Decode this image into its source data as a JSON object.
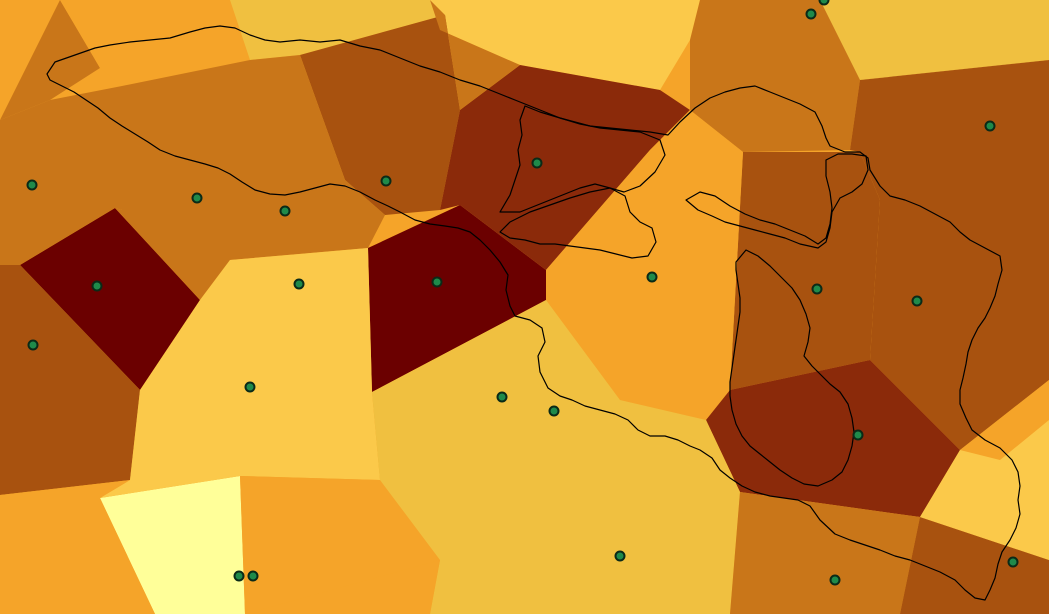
{
  "map": {
    "type": "voronoi-thiessen-polygons",
    "background_color": "#f5a429",
    "legend": null,
    "station_style": {
      "fill": "#1f8a4a",
      "stroke": "#0b2a17"
    },
    "boundary_style": {
      "stroke": "#000000"
    },
    "regions": [
      {
        "id": "r01",
        "fill": "#c97619"
      },
      {
        "id": "r02",
        "fill": "#f5a429"
      },
      {
        "id": "r03",
        "fill": "#f0c040"
      },
      {
        "id": "r04",
        "fill": "#fbc94a"
      },
      {
        "id": "r05",
        "fill": "#a8520f"
      },
      {
        "id": "r06",
        "fill": "#8b2a0a"
      },
      {
        "id": "r07",
        "fill": "#6b0000"
      },
      {
        "id": "r08",
        "fill": "#6b0000"
      },
      {
        "id": "r09",
        "fill": "#ffff99"
      },
      {
        "id": "r10",
        "fill": "#c97619"
      },
      {
        "id": "r11",
        "fill": "#a8520f"
      },
      {
        "id": "r12",
        "fill": "#c97619"
      },
      {
        "id": "r13",
        "fill": "#8b2a0a"
      },
      {
        "id": "r14",
        "fill": "#fbc94a"
      },
      {
        "id": "r15",
        "fill": "#f5a429"
      },
      {
        "id": "r16",
        "fill": "#a8520f"
      },
      {
        "id": "r17",
        "fill": "#c97619"
      },
      {
        "id": "r18",
        "fill": "#f5a429"
      },
      {
        "id": "r19",
        "fill": "#f5a429"
      },
      {
        "id": "r20",
        "fill": "#a8520f"
      },
      {
        "id": "r21",
        "fill": "#8b2a0a"
      },
      {
        "id": "r22",
        "fill": "#f0c040"
      },
      {
        "id": "r23",
        "fill": "#c97619"
      },
      {
        "id": "r24",
        "fill": "#a8520f"
      },
      {
        "id": "r25",
        "fill": "#f5a429"
      },
      {
        "id": "r26",
        "fill": "#fbc94a"
      },
      {
        "id": "r27",
        "fill": "#f0c040"
      },
      {
        "id": "r28",
        "fill": "#c97619"
      },
      {
        "id": "r29",
        "fill": "#f5a429"
      },
      {
        "id": "r30",
        "fill": "#f5a429"
      }
    ],
    "station_count": 24,
    "boundary_count": 5
  }
}
